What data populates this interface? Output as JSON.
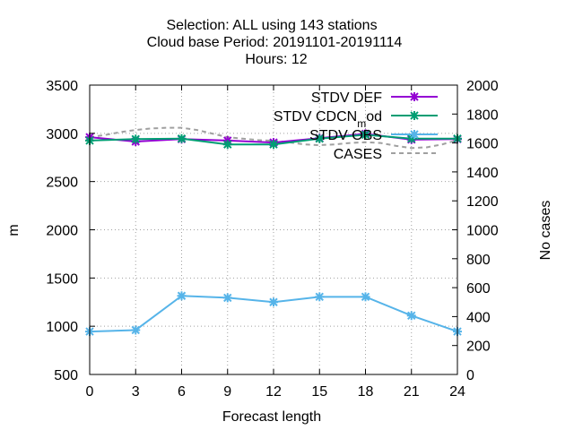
{
  "chart_data": {
    "type": "line",
    "title_lines": [
      "Selection: ALL using   143 stations",
      "Cloud base   Period: 20191101-20191114",
      "Hours:  12"
    ],
    "xlabel": "Forecast length",
    "ylabel": "m",
    "y2label": "No cases",
    "x": [
      0,
      3,
      6,
      9,
      12,
      15,
      18,
      21,
      24
    ],
    "xlim": [
      0,
      24
    ],
    "xticks": [
      "0",
      "3",
      "6",
      "9",
      "12",
      "15",
      "18",
      "21",
      "24"
    ],
    "ylim": [
      500,
      3500
    ],
    "yticks": [
      "500",
      "1000",
      "1500",
      "2000",
      "2500",
      "3000",
      "3500"
    ],
    "y2lim": [
      0,
      2000
    ],
    "y2ticks": [
      "0",
      "200",
      "400",
      "600",
      "800",
      "1000",
      "1200",
      "1400",
      "1600",
      "1800",
      "2000"
    ],
    "grid": true,
    "legend_position": "top-right",
    "series": [
      {
        "name": "STDV DEF",
        "axis": "y",
        "color": "#9400d3",
        "marker": "x-star",
        "values": [
          2960,
          2915,
          2940,
          2925,
          2905,
          2950,
          2995,
          2935,
          2940
        ]
      },
      {
        "name": "STDV CDCN_mod",
        "name_display": {
          "base": "STDV CDCN",
          "sub": "m",
          "rest": "od"
        },
        "axis": "y",
        "color": "#009e73",
        "marker": "x-star",
        "values": [
          2925,
          2940,
          2945,
          2885,
          2885,
          2945,
          2985,
          2945,
          2945
        ]
      },
      {
        "name": "STDV OBS",
        "axis": "y",
        "color": "#56b4e9",
        "marker": "x-star",
        "values": [
          945,
          960,
          1315,
          1295,
          1250,
          1305,
          1305,
          1110,
          945
        ]
      },
      {
        "name": "CASES",
        "axis": "y2",
        "color": "#a0a0a0",
        "style": "dashed",
        "x": [
          0,
          1,
          2,
          3,
          4,
          5,
          6,
          7,
          8,
          9,
          10,
          11,
          12,
          13,
          14,
          15,
          16,
          17,
          18,
          19,
          20,
          21,
          22,
          23,
          24
        ],
        "values": [
          1640,
          1655,
          1675,
          1690,
          1700,
          1705,
          1705,
          1690,
          1665,
          1640,
          1630,
          1620,
          1615,
          1605,
          1590,
          1585,
          1590,
          1600,
          1605,
          1600,
          1580,
          1565,
          1570,
          1590,
          1620
        ]
      }
    ]
  }
}
